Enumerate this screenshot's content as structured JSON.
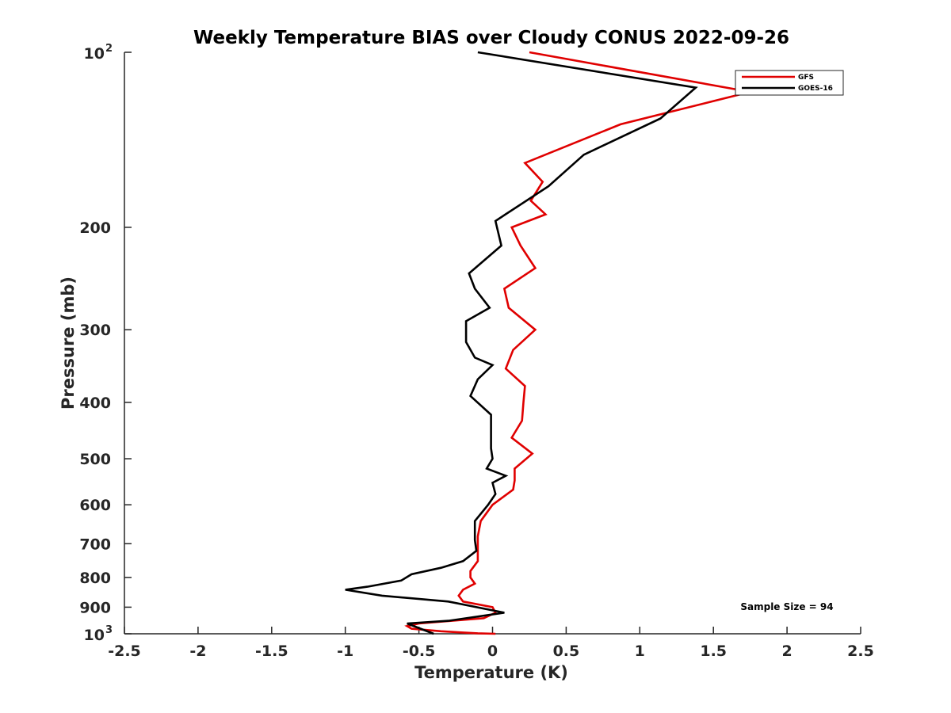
{
  "chart_data": {
    "type": "line",
    "title": "Weekly Temperature BIAS over Cloudy CONUS 2022-09-26",
    "xlabel": "Temperature (K)",
    "ylabel": "Pressure (mb)",
    "xlim": [
      -2.5,
      2.5
    ],
    "ylim": [
      1000,
      100
    ],
    "y_scale": "log",
    "grid": false,
    "legend_position": "top-right",
    "annotation": "Sample Size = 94",
    "x_ticks": [
      {
        "value": -2.5,
        "label": "-2.5"
      },
      {
        "value": -2,
        "label": "-2"
      },
      {
        "value": -1.5,
        "label": "-1.5"
      },
      {
        "value": -1,
        "label": "-1"
      },
      {
        "value": -0.5,
        "label": "-0.5"
      },
      {
        "value": 0,
        "label": "0"
      },
      {
        "value": 0.5,
        "label": "0.5"
      },
      {
        "value": 1,
        "label": "1"
      },
      {
        "value": 1.5,
        "label": "1.5"
      },
      {
        "value": 2,
        "label": "2"
      },
      {
        "value": 2.5,
        "label": "2.5"
      }
    ],
    "y_ticks": [
      {
        "value": 100,
        "label": "10",
        "sup": "2"
      },
      {
        "value": 200,
        "label": "200"
      },
      {
        "value": 300,
        "label": "300"
      },
      {
        "value": 400,
        "label": "400"
      },
      {
        "value": 500,
        "label": "500"
      },
      {
        "value": 600,
        "label": "600"
      },
      {
        "value": 700,
        "label": "700"
      },
      {
        "value": 800,
        "label": "800"
      },
      {
        "value": 900,
        "label": "900"
      },
      {
        "value": 1000,
        "label": "10",
        "sup": "3"
      }
    ],
    "series": [
      {
        "name": "GFS",
        "color": "#e00000",
        "x": [
          0.25,
          1.75,
          0.87,
          0.22,
          0.34,
          0.26,
          0.36,
          0.13,
          0.19,
          0.29,
          0.08,
          0.11,
          0.29,
          0.14,
          0.09,
          0.22,
          0.21,
          0.2,
          0.13,
          0.27,
          0.15,
          0.15,
          0.14,
          0.0,
          -0.08,
          -0.1,
          -0.1,
          -0.1,
          -0.15,
          -0.15,
          -0.12,
          -0.2,
          -0.23,
          -0.2,
          0.0,
          0.02,
          -0.06,
          -0.5,
          -0.58,
          -0.55,
          -0.35,
          -0.2,
          -0.1,
          0.02
        ],
        "y": [
          100,
          117,
          133,
          155,
          167,
          180,
          190,
          200,
          215,
          235,
          255,
          275,
          300,
          325,
          350,
          375,
          400,
          430,
          460,
          490,
          520,
          545,
          565,
          600,
          640,
          680,
          720,
          750,
          780,
          800,
          820,
          840,
          860,
          880,
          900,
          920,
          940,
          960,
          970,
          980,
          990,
          995,
          998,
          1000
        ]
      },
      {
        "name": "GOES-16",
        "color": "#000000",
        "x": [
          -0.1,
          1.38,
          1.14,
          0.62,
          0.38,
          0.02,
          0.06,
          -0.16,
          -0.12,
          -0.02,
          -0.18,
          -0.18,
          -0.12,
          0.0,
          -0.1,
          -0.15,
          -0.01,
          -0.01,
          -0.01,
          0.0,
          -0.04,
          0.09,
          0.0,
          0.02,
          -0.03,
          -0.12,
          -0.12,
          -0.11,
          -0.2,
          -0.35,
          -0.55,
          -0.62,
          -0.85,
          -1.0,
          -0.75,
          -0.3,
          0.08,
          -0.3,
          -0.58,
          -0.4
        ],
        "y": [
          100,
          115,
          130,
          150,
          170,
          195,
          215,
          240,
          255,
          275,
          290,
          315,
          335,
          345,
          365,
          390,
          420,
          455,
          480,
          500,
          520,
          535,
          550,
          575,
          600,
          640,
          690,
          720,
          750,
          770,
          790,
          810,
          830,
          840,
          860,
          880,
          920,
          950,
          960,
          1000
        ]
      }
    ]
  }
}
